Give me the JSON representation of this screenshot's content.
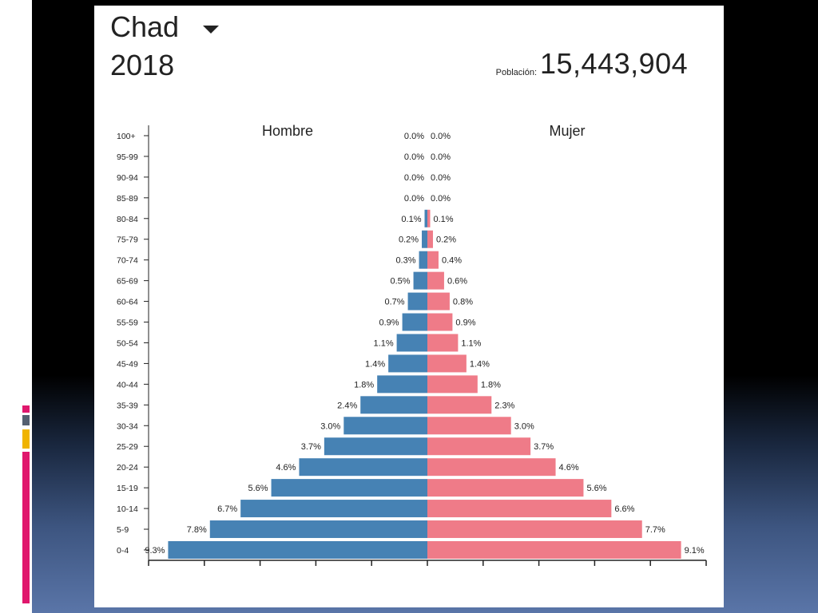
{
  "header": {
    "country": "Chad",
    "year": "2018",
    "population_label": "Población:",
    "population_value": "15,443,904"
  },
  "colors": {
    "male": "#4682b4",
    "female": "#ef7b88",
    "accent_pink": "#e0176d",
    "accent_gray": "#556070",
    "accent_yellow": "#f0b400"
  },
  "chart_data": {
    "type": "bar",
    "orientation": "horizontal-population-pyramid",
    "categories": [
      "100+",
      "95-99",
      "90-94",
      "85-89",
      "80-84",
      "75-79",
      "70-74",
      "65-69",
      "60-64",
      "55-59",
      "50-54",
      "45-49",
      "40-44",
      "35-39",
      "30-34",
      "25-29",
      "20-24",
      "15-19",
      "10-14",
      "5-9",
      "0-4"
    ],
    "series": [
      {
        "name": "Hombre",
        "values": [
          0.0,
          0.0,
          0.0,
          0.0,
          0.1,
          0.2,
          0.3,
          0.5,
          0.7,
          0.9,
          1.1,
          1.4,
          1.8,
          2.4,
          3.0,
          3.7,
          4.6,
          5.6,
          6.7,
          7.8,
          9.3
        ],
        "labels": [
          "0.0%",
          "0.0%",
          "0.0%",
          "0.0%",
          "0.1%",
          "0.2%",
          "0.3%",
          "0.5%",
          "0.7%",
          "0.9%",
          "1.1%",
          "1.4%",
          "1.8%",
          "2.4%",
          "3.0%",
          "3.7%",
          "4.6%",
          "5.6%",
          "6.7%",
          "7.8%",
          "9.3%"
        ]
      },
      {
        "name": "Mujer",
        "values": [
          0.0,
          0.0,
          0.0,
          0.0,
          0.1,
          0.2,
          0.4,
          0.6,
          0.8,
          0.9,
          1.1,
          1.4,
          1.8,
          2.3,
          3.0,
          3.7,
          4.6,
          5.6,
          6.6,
          7.7,
          9.1
        ],
        "labels": [
          "0.0%",
          "0.0%",
          "0.0%",
          "0.0%",
          "0.1%",
          "0.2%",
          "0.4%",
          "0.6%",
          "0.8%",
          "0.9%",
          "1.1%",
          "1.4%",
          "1.8%",
          "2.3%",
          "3.0%",
          "3.7%",
          "4.6%",
          "5.6%",
          "6.6%",
          "7.7%",
          "9.1%"
        ]
      }
    ],
    "xlim": [
      -10,
      10
    ],
    "x_ticks": [
      -10,
      -8,
      -6,
      -4,
      -2,
      0,
      2,
      4,
      6,
      8,
      10
    ]
  }
}
